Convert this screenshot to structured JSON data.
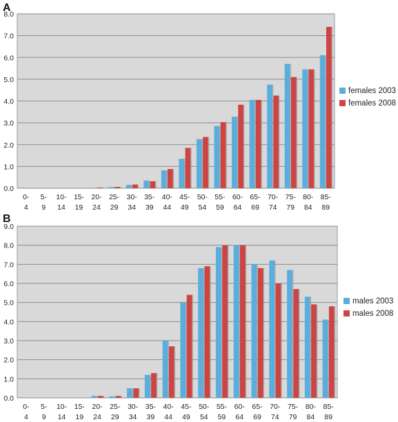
{
  "chart_data": [
    {
      "panel": "A",
      "type": "bar",
      "categories": [
        "0-\n4",
        "5-\n9",
        "10-\n14",
        "15-\n19",
        "20-\n24",
        "25-\n29",
        "30-\n34",
        "35-\n39",
        "40-\n44",
        "45-\n49",
        "50-\n54",
        "55-\n59",
        "60-\n64",
        "65-\n69",
        "70-\n74",
        "75-\n79",
        "80-\n84",
        "85-\n89"
      ],
      "series": [
        {
          "name": "females 2003",
          "color": "#5aaedd",
          "values": [
            0,
            0,
            0,
            0,
            0.02,
            0.05,
            0.15,
            0.35,
            0.82,
            1.35,
            2.25,
            2.85,
            3.28,
            4.05,
            4.75,
            5.7,
            5.45,
            6.1
          ]
        },
        {
          "name": "females 2008",
          "color": "#cc4444",
          "values": [
            0,
            0,
            0,
            0,
            0.03,
            0.06,
            0.17,
            0.32,
            0.88,
            1.85,
            2.35,
            3.03,
            3.83,
            4.05,
            4.25,
            5.1,
            5.45,
            7.4
          ]
        }
      ],
      "ylim": [
        0,
        8
      ],
      "yticks": [
        "0.0",
        "1.0",
        "2.0",
        "3.0",
        "4.0",
        "5.0",
        "6.0",
        "7.0",
        "8.0"
      ],
      "grid": true,
      "legend": "right"
    },
    {
      "panel": "B",
      "type": "bar",
      "categories": [
        "0-\n4",
        "5-\n9",
        "10-\n14",
        "15-\n19",
        "20-\n24",
        "25-\n29",
        "30-\n34",
        "35-\n39",
        "40-\n44",
        "45-\n49",
        "50-\n54",
        "55-\n59",
        "60-\n64",
        "65-\n69",
        "70-\n74",
        "75-\n79",
        "80-\n84",
        "85-\n89"
      ],
      "series": [
        {
          "name": "males 2003",
          "color": "#5aaedd",
          "values": [
            0,
            0,
            0,
            0,
            0.1,
            0.08,
            0.5,
            1.2,
            3.0,
            5.0,
            6.8,
            7.9,
            8.0,
            7.0,
            7.2,
            6.7,
            5.3,
            4.1
          ]
        },
        {
          "name": "males 2008",
          "color": "#cc4444",
          "values": [
            0,
            0,
            0,
            0,
            0.1,
            0.1,
            0.5,
            1.3,
            2.7,
            5.4,
            6.9,
            8.0,
            8.0,
            6.8,
            6.0,
            5.7,
            4.9,
            4.8
          ]
        }
      ],
      "ylim": [
        0,
        9
      ],
      "yticks": [
        "0.0",
        "1.0",
        "2.0",
        "3.0",
        "4.0",
        "5.0",
        "6.0",
        "7.0",
        "8.0",
        "9.0"
      ],
      "grid": true,
      "legend": "right"
    }
  ]
}
